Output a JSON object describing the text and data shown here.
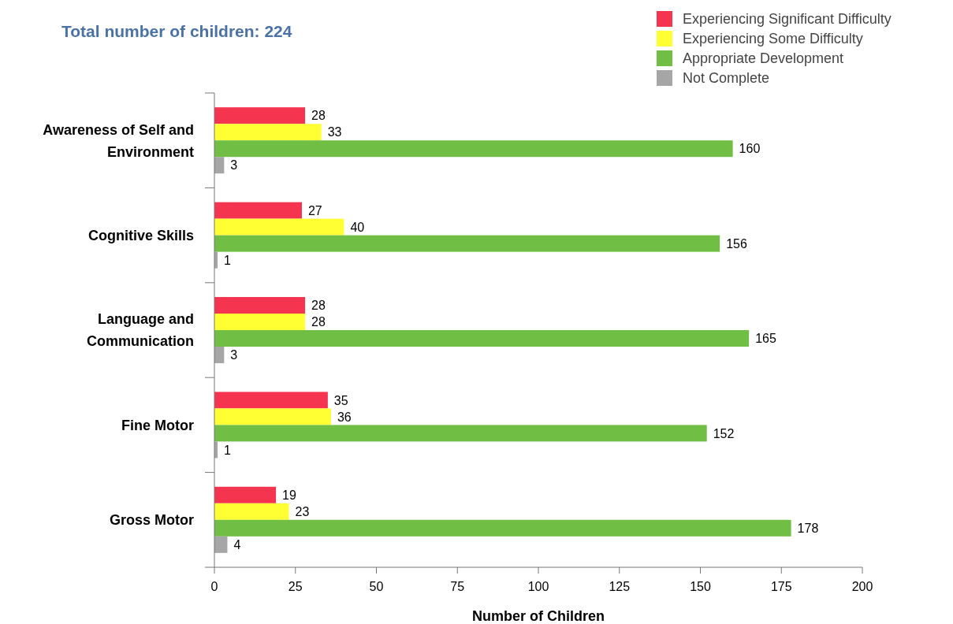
{
  "chart_data": {
    "type": "bar",
    "orientation": "horizontal",
    "title": "Total number of children: 224",
    "xlabel": "Number of Children",
    "categories": [
      "Awareness of Self and Environment",
      "Cognitive Skills",
      "Language and Communication",
      "Fine Motor",
      "Gross Motor"
    ],
    "series": [
      {
        "name": "Experiencing Significant Difficulty",
        "color": "#f5344f",
        "values": [
          28,
          27,
          28,
          35,
          19
        ]
      },
      {
        "name": "Experiencing Some Difficulty",
        "color": "#ffff33",
        "values": [
          33,
          40,
          28,
          36,
          23
        ]
      },
      {
        "name": "Appropriate Development",
        "color": "#70bf44",
        "values": [
          160,
          156,
          165,
          152,
          178
        ]
      },
      {
        "name": "Not Complete",
        "color": "#a6a6a6",
        "values": [
          3,
          1,
          3,
          1,
          4
        ]
      }
    ],
    "xlim": [
      0,
      200
    ],
    "xticks": [
      0,
      25,
      50,
      75,
      100,
      125,
      150,
      175,
      200
    ],
    "data_labels": true,
    "legend": "top right",
    "grid": false
  }
}
